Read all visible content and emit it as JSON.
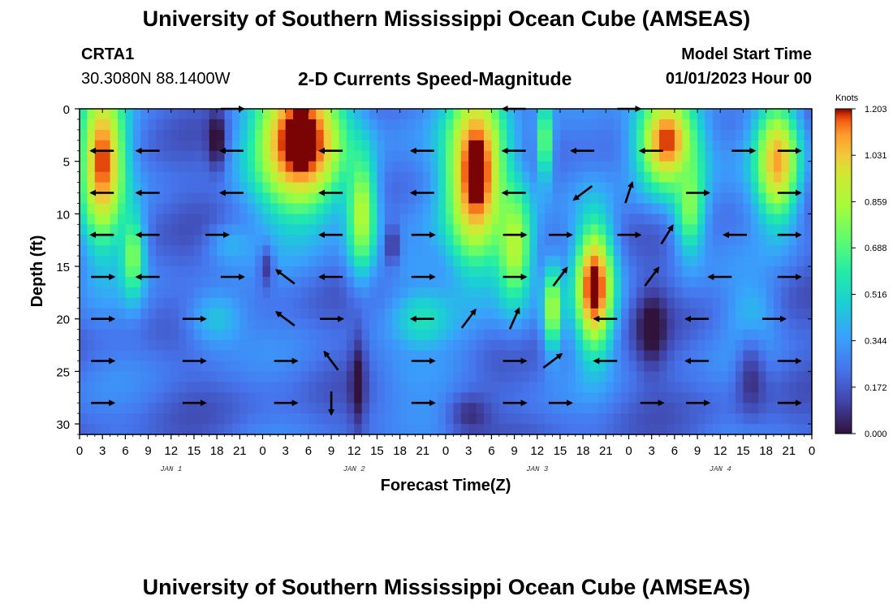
{
  "header": {
    "title": "University of Southern Mississippi Ocean Cube (AMSEAS)",
    "station": "CRTA1",
    "coordinates": "30.3080N  88.1400W",
    "subtitle": "2-D Currents Speed-Magnitude",
    "model_start_label": "Model Start Time",
    "model_start_value": "01/01/2023 Hour 00"
  },
  "footer": {
    "title": "University of Southern Mississippi Ocean Cube (AMSEAS)"
  },
  "chart_data": {
    "type": "heatmap",
    "title": "2-D Currents Speed-Magnitude",
    "xlabel": "Forecast Time(Z)",
    "ylabel": "Depth (ft)",
    "xlim": [
      0,
      96
    ],
    "ylim": [
      31,
      0
    ],
    "x_ticks": [
      0,
      3,
      6,
      9,
      12,
      15,
      18,
      21,
      24,
      27,
      30,
      33,
      36,
      39,
      42,
      45,
      48,
      51,
      54,
      57,
      60,
      63,
      66,
      69,
      72,
      75,
      78,
      81,
      84,
      87,
      90,
      93,
      96
    ],
    "x_tick_labels": [
      "0",
      "3",
      "6",
      "9",
      "12",
      "15",
      "18",
      "21",
      "0",
      "3",
      "6",
      "9",
      "12",
      "15",
      "18",
      "21",
      "0",
      "3",
      "6",
      "9",
      "12",
      "15",
      "18",
      "21",
      "0",
      "3",
      "6",
      "9",
      "12",
      "15",
      "18",
      "21",
      "0"
    ],
    "day_labels": [
      {
        "hour": 12,
        "label": "JAN 1"
      },
      {
        "hour": 36,
        "label": "JAN 2"
      },
      {
        "hour": 60,
        "label": "JAN 3"
      },
      {
        "hour": 84,
        "label": "JAN 4"
      }
    ],
    "y_ticks": [
      0,
      5,
      10,
      15,
      20,
      25,
      30
    ],
    "y_tick_labels": [
      "0",
      "5",
      "10",
      "15",
      "20",
      "25",
      "30"
    ],
    "colorbar": {
      "unit": "Knots",
      "min": 0.0,
      "max": 1.203,
      "ticks": [
        1.203,
        1.031,
        0.859,
        0.688,
        0.516,
        0.344,
        0.172,
        0.0
      ],
      "tick_labels": [
        "1.203",
        "1.031",
        "0.859",
        "0.688",
        "0.516",
        "0.344",
        "0.172",
        "0.000"
      ]
    },
    "speed_blobs": [
      {
        "hour": 3,
        "depth": 5,
        "sx": 3.0,
        "sd": 8,
        "v": 1.2
      },
      {
        "hour": 7,
        "depth": 14,
        "sx": 1.5,
        "sd": 4,
        "v": 0.8
      },
      {
        "hour": 29,
        "depth": 3,
        "sx": 6.0,
        "sd": 7,
        "v": 1.35
      },
      {
        "hour": 37,
        "depth": 10,
        "sx": 2.0,
        "sd": 6,
        "v": 0.9
      },
      {
        "hour": 52,
        "depth": 6,
        "sx": 4.0,
        "sd": 9,
        "v": 1.3
      },
      {
        "hour": 57,
        "depth": 13,
        "sx": 2.5,
        "sd": 6,
        "v": 0.9
      },
      {
        "hour": 62,
        "depth": 19,
        "sx": 1.2,
        "sd": 4,
        "v": 0.9
      },
      {
        "hour": 61,
        "depth": 3,
        "sx": 1.0,
        "sd": 4,
        "v": 0.8
      },
      {
        "hour": 67.5,
        "depth": 17,
        "sx": 2.5,
        "sd": 6,
        "v": 1.3
      },
      {
        "hour": 77,
        "depth": 3,
        "sx": 4.0,
        "sd": 5,
        "v": 1.2
      },
      {
        "hour": 80,
        "depth": 9,
        "sx": 2.0,
        "sd": 5,
        "v": 0.8
      },
      {
        "hour": 91.5,
        "depth": 5,
        "sx": 3.0,
        "sd": 6,
        "v": 1.1
      },
      {
        "hour": 18,
        "depth": 20,
        "sx": 4.0,
        "sd": 3,
        "v": 0.45
      },
      {
        "hour": 45,
        "depth": 20,
        "sx": 4.0,
        "sd": 3,
        "v": 0.55
      },
      {
        "hour": 45,
        "depth": 25,
        "sx": 6.0,
        "sd": 4,
        "v": 0.35
      },
      {
        "hour": 20,
        "depth": 13,
        "sx": 3.0,
        "sd": 2,
        "v": 0.4
      },
      {
        "hour": 45,
        "depth": 15,
        "sx": 6.0,
        "sd": 3,
        "v": 0.35
      },
      {
        "hour": 88,
        "depth": 20,
        "sx": 3.0,
        "sd": 4,
        "v": 0.45
      },
      {
        "hour": 84,
        "depth": 27,
        "sx": 4.0,
        "sd": 5,
        "v": 0.2
      }
    ],
    "low_spots": [
      {
        "hour": 18,
        "depth": 3,
        "sx": 1.2,
        "sd": 3,
        "v": 0.5
      },
      {
        "hour": 24.5,
        "depth": 15,
        "sx": 1.0,
        "sd": 2,
        "v": 0.3
      },
      {
        "hour": 36.5,
        "depth": 26,
        "sx": 1.0,
        "sd": 5,
        "v": 0.3
      },
      {
        "hour": 41,
        "depth": 13,
        "sx": 1.0,
        "sd": 2,
        "v": 0.3
      },
      {
        "hour": 51,
        "depth": 29,
        "sx": 3.0,
        "sd": 2,
        "v": 0.2
      },
      {
        "hour": 75,
        "depth": 21,
        "sx": 2.0,
        "sd": 4,
        "v": 0.3
      },
      {
        "hour": 88,
        "depth": 25,
        "sx": 2.0,
        "sd": 4,
        "v": 0.25
      }
    ],
    "vector_rows_depth_ft": [
      0,
      4,
      8,
      12,
      16,
      20,
      24,
      28
    ],
    "vectors": [
      {
        "hour": 20,
        "depth": 0,
        "u": 1.0,
        "v": 0.0
      },
      {
        "hour": 57,
        "depth": 0,
        "u": -1.0,
        "v": 0.0
      },
      {
        "hour": 72,
        "depth": 0,
        "u": 1.0,
        "v": 0.0
      },
      {
        "hour": 3,
        "depth": 4,
        "u": -1.0,
        "v": 0.0
      },
      {
        "hour": 9,
        "depth": 4,
        "u": -1.0,
        "v": 0.0
      },
      {
        "hour": 20,
        "depth": 4,
        "u": -1.0,
        "v": 0.0
      },
      {
        "hour": 33,
        "depth": 4,
        "u": -1.0,
        "v": 0.0
      },
      {
        "hour": 45,
        "depth": 4,
        "u": -1.0,
        "v": 0.0
      },
      {
        "hour": 57,
        "depth": 4,
        "u": -1.0,
        "v": 0.0
      },
      {
        "hour": 66,
        "depth": 4,
        "u": -1.0,
        "v": 0.0
      },
      {
        "hour": 75,
        "depth": 4,
        "u": -1.0,
        "v": 0.0
      },
      {
        "hour": 87,
        "depth": 4,
        "u": 1.0,
        "v": 0.0
      },
      {
        "hour": 93,
        "depth": 4,
        "u": 1.0,
        "v": 0.0
      },
      {
        "hour": 3,
        "depth": 8,
        "u": -1.0,
        "v": 0.0
      },
      {
        "hour": 9,
        "depth": 8,
        "u": -1.0,
        "v": 0.0
      },
      {
        "hour": 20,
        "depth": 8,
        "u": -1.0,
        "v": 0.0
      },
      {
        "hour": 33,
        "depth": 8,
        "u": -1.0,
        "v": 0.0
      },
      {
        "hour": 45,
        "depth": 8,
        "u": -1.0,
        "v": 0.0
      },
      {
        "hour": 57,
        "depth": 8,
        "u": -1.0,
        "v": 0.0
      },
      {
        "hour": 66,
        "depth": 8,
        "u": -0.8,
        "v": -0.6
      },
      {
        "hour": 72,
        "depth": 8,
        "u": 0.3,
        "v": 0.9
      },
      {
        "hour": 81,
        "depth": 8,
        "u": 1.0,
        "v": 0.0
      },
      {
        "hour": 93,
        "depth": 8,
        "u": 1.0,
        "v": 0.0
      },
      {
        "hour": 3,
        "depth": 12,
        "u": -1.0,
        "v": 0.0
      },
      {
        "hour": 9,
        "depth": 12,
        "u": -1.0,
        "v": 0.0
      },
      {
        "hour": 18,
        "depth": 12,
        "u": 1.0,
        "v": 0.0
      },
      {
        "hour": 33,
        "depth": 12,
        "u": -1.0,
        "v": 0.0
      },
      {
        "hour": 45,
        "depth": 12,
        "u": 1.0,
        "v": 0.0
      },
      {
        "hour": 57,
        "depth": 12,
        "u": 1.0,
        "v": 0.0
      },
      {
        "hour": 63,
        "depth": 12,
        "u": 1.0,
        "v": 0.0
      },
      {
        "hour": 72,
        "depth": 12,
        "u": 1.0,
        "v": 0.0
      },
      {
        "hour": 77,
        "depth": 12,
        "u": 0.5,
        "v": 0.8
      },
      {
        "hour": 86,
        "depth": 12,
        "u": -1.0,
        "v": 0.0
      },
      {
        "hour": 93,
        "depth": 12,
        "u": 1.0,
        "v": 0.0
      },
      {
        "hour": 3,
        "depth": 16,
        "u": 1.0,
        "v": 0.0
      },
      {
        "hour": 9,
        "depth": 16,
        "u": -1.0,
        "v": 0.0
      },
      {
        "hour": 20,
        "depth": 16,
        "u": 1.0,
        "v": 0.0
      },
      {
        "hour": 27,
        "depth": 16,
        "u": -0.8,
        "v": 0.6
      },
      {
        "hour": 33,
        "depth": 16,
        "u": -1.0,
        "v": 0.0
      },
      {
        "hour": 45,
        "depth": 16,
        "u": 1.0,
        "v": 0.0
      },
      {
        "hour": 57,
        "depth": 16,
        "u": 1.0,
        "v": 0.0
      },
      {
        "hour": 63,
        "depth": 16,
        "u": 0.6,
        "v": 0.8
      },
      {
        "hour": 75,
        "depth": 16,
        "u": 0.6,
        "v": 0.8
      },
      {
        "hour": 84,
        "depth": 16,
        "u": -1.0,
        "v": 0.0
      },
      {
        "hour": 93,
        "depth": 16,
        "u": 1.0,
        "v": 0.0
      },
      {
        "hour": 3,
        "depth": 20,
        "u": 1.0,
        "v": 0.0
      },
      {
        "hour": 15,
        "depth": 20,
        "u": 1.0,
        "v": 0.0
      },
      {
        "hour": 27,
        "depth": 20,
        "u": -0.8,
        "v": 0.6
      },
      {
        "hour": 33,
        "depth": 20,
        "u": 1.0,
        "v": 0.0
      },
      {
        "hour": 45,
        "depth": 20,
        "u": -1.0,
        "v": 0.0
      },
      {
        "hour": 51,
        "depth": 20,
        "u": 0.6,
        "v": 0.8
      },
      {
        "hour": 57,
        "depth": 20,
        "u": 0.4,
        "v": 0.9
      },
      {
        "hour": 69,
        "depth": 20,
        "u": -1.0,
        "v": 0.0
      },
      {
        "hour": 81,
        "depth": 20,
        "u": -1.0,
        "v": 0.0
      },
      {
        "hour": 91,
        "depth": 20,
        "u": 1.0,
        "v": 0.0
      },
      {
        "hour": 3,
        "depth": 24,
        "u": 1.0,
        "v": 0.0
      },
      {
        "hour": 15,
        "depth": 24,
        "u": 1.0,
        "v": 0.0
      },
      {
        "hour": 27,
        "depth": 24,
        "u": 1.0,
        "v": 0.0
      },
      {
        "hour": 33,
        "depth": 24,
        "u": -0.6,
        "v": 0.8
      },
      {
        "hour": 45,
        "depth": 24,
        "u": 1.0,
        "v": 0.0
      },
      {
        "hour": 57,
        "depth": 24,
        "u": 1.0,
        "v": 0.0
      },
      {
        "hour": 62,
        "depth": 24,
        "u": 0.8,
        "v": 0.6
      },
      {
        "hour": 69,
        "depth": 24,
        "u": -1.0,
        "v": 0.0
      },
      {
        "hour": 81,
        "depth": 24,
        "u": -1.0,
        "v": 0.0
      },
      {
        "hour": 93,
        "depth": 24,
        "u": 1.0,
        "v": 0.0
      },
      {
        "hour": 3,
        "depth": 28,
        "u": 1.0,
        "v": 0.0
      },
      {
        "hour": 15,
        "depth": 28,
        "u": 1.0,
        "v": 0.0
      },
      {
        "hour": 27,
        "depth": 28,
        "u": 1.0,
        "v": 0.0
      },
      {
        "hour": 33,
        "depth": 28,
        "u": 0.0,
        "v": -1.0
      },
      {
        "hour": 45,
        "depth": 28,
        "u": 1.0,
        "v": 0.0
      },
      {
        "hour": 57,
        "depth": 28,
        "u": 1.0,
        "v": 0.0
      },
      {
        "hour": 63,
        "depth": 28,
        "u": 1.0,
        "v": 0.0
      },
      {
        "hour": 75,
        "depth": 28,
        "u": 1.0,
        "v": 0.0
      },
      {
        "hour": 81,
        "depth": 28,
        "u": 1.0,
        "v": 0.0
      },
      {
        "hour": 93,
        "depth": 28,
        "u": 1.0,
        "v": 0.0
      }
    ]
  },
  "colors": {
    "low": "#30123b",
    "mid": "#1ae4b6",
    "high": "#7a0403",
    "vector": "#000000"
  }
}
